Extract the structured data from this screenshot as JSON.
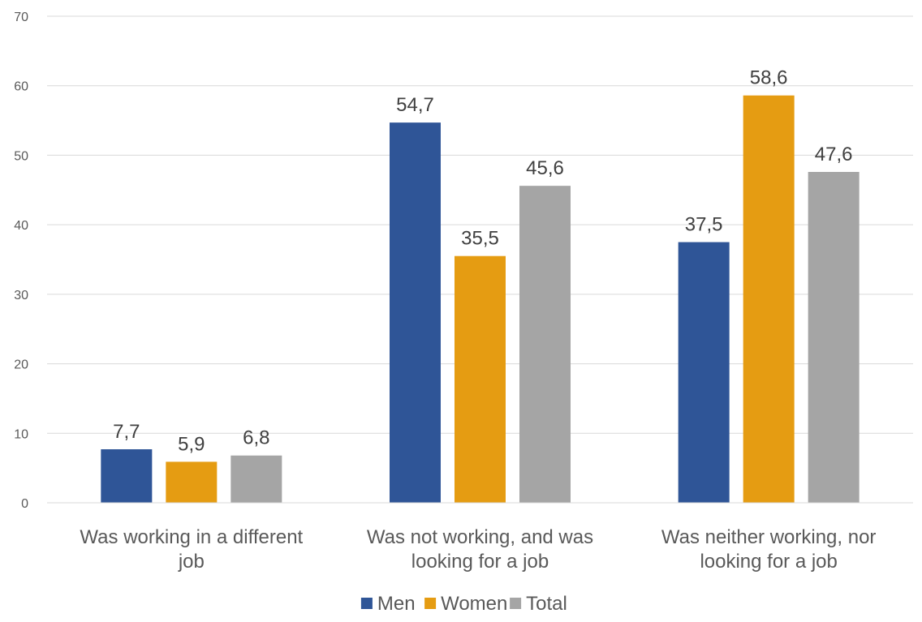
{
  "chart_data": {
    "type": "bar",
    "categories": [
      [
        "Was working in a different",
        "job"
      ],
      [
        "Was not working, and was",
        "looking for a job"
      ],
      [
        "Was neither working, nor",
        "looking for a job"
      ]
    ],
    "series": [
      {
        "name": "Men",
        "color": "#2F5597",
        "values": [
          7.7,
          54.7,
          37.5
        ],
        "labels": [
          "7,7",
          "54,7",
          "37,5"
        ]
      },
      {
        "name": "Women",
        "color": "#E59C12",
        "values": [
          5.9,
          35.5,
          58.6
        ],
        "labels": [
          "5,9",
          "35,5",
          "58,6"
        ]
      },
      {
        "name": "Total",
        "color": "#A5A5A5",
        "values": [
          6.8,
          45.6,
          47.6
        ],
        "labels": [
          "6,8",
          "45,6",
          "47,6"
        ]
      }
    ],
    "ylim": [
      0,
      70
    ],
    "yticks": [
      0,
      10,
      20,
      30,
      40,
      50,
      60,
      70
    ],
    "grid": true,
    "legend_position": "bottom"
  }
}
